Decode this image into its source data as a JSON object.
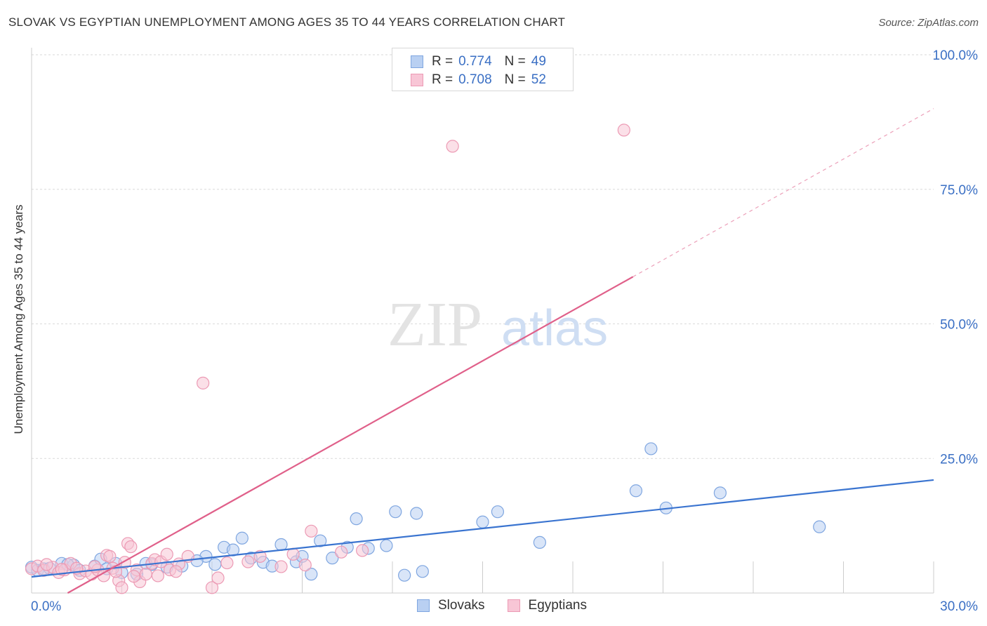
{
  "header": {
    "title": "SLOVAK VS EGYPTIAN UNEMPLOYMENT AMONG AGES 35 TO 44 YEARS CORRELATION CHART",
    "source": "Source: ZipAtlas.com"
  },
  "watermark": {
    "zip": "ZIP",
    "atlas": "atlas"
  },
  "legend": {
    "rows": [
      {
        "r_label": "R =",
        "r_value": "0.774",
        "n_label": "N =",
        "n_value": "49",
        "fill": "#b9d0f2",
        "stroke": "#7fa6e0"
      },
      {
        "r_label": "R =",
        "r_value": "0.708",
        "n_label": "N =",
        "n_value": "52",
        "fill": "#f8c6d6",
        "stroke": "#ec9ab4"
      }
    ]
  },
  "bottom_legend": {
    "series1": "Slovaks",
    "series2": "Egyptians"
  },
  "chart_data": {
    "type": "scatter",
    "xlabel": "",
    "ylabel": "Unemployment Among Ages 35 to 44 years",
    "xlim": [
      0,
      30
    ],
    "ylim": [
      0,
      100
    ],
    "x_tick_labels": [
      "0.0%",
      "30.0%"
    ],
    "y_tick_values": [
      25,
      50,
      75,
      100
    ],
    "y_tick_labels": [
      "25.0%",
      "50.0%",
      "75.0%",
      "100.0%"
    ],
    "grid": true,
    "legend_position": "top-center",
    "series": [
      {
        "name": "Slovaks",
        "color": "#3a74d0",
        "fill": "#b9d0f2",
        "stroke": "#7fa6e0",
        "trend": {
          "x0": 0,
          "y0": 3.0,
          "x1": 30,
          "y1": 21.0,
          "solid_until": 30
        },
        "points": [
          [
            0.0,
            4.8
          ],
          [
            0.2,
            4.2
          ],
          [
            0.4,
            4.5
          ],
          [
            0.6,
            4.6
          ],
          [
            1.0,
            5.5
          ],
          [
            1.4,
            5.2
          ],
          [
            1.6,
            4.2
          ],
          [
            2.1,
            5.0
          ],
          [
            2.3,
            6.3
          ],
          [
            2.5,
            4.5
          ],
          [
            3.0,
            3.8
          ],
          [
            3.5,
            3.5
          ],
          [
            4.0,
            5.3
          ],
          [
            4.5,
            4.8
          ],
          [
            5.0,
            5.0
          ],
          [
            5.8,
            6.8
          ],
          [
            6.1,
            5.3
          ],
          [
            6.4,
            8.5
          ],
          [
            6.7,
            8.0
          ],
          [
            7.0,
            10.2
          ],
          [
            7.3,
            6.5
          ],
          [
            7.7,
            5.7
          ],
          [
            8.0,
            5.0
          ],
          [
            8.3,
            9.0
          ],
          [
            8.8,
            5.8
          ],
          [
            9.0,
            6.8
          ],
          [
            9.3,
            3.5
          ],
          [
            9.6,
            9.7
          ],
          [
            10.0,
            6.5
          ],
          [
            10.5,
            8.5
          ],
          [
            10.8,
            13.8
          ],
          [
            11.2,
            8.3
          ],
          [
            11.8,
            8.8
          ],
          [
            12.1,
            15.1
          ],
          [
            12.4,
            3.3
          ],
          [
            12.8,
            14.8
          ],
          [
            13.0,
            4.0
          ],
          [
            15.0,
            13.2
          ],
          [
            15.5,
            15.1
          ],
          [
            16.9,
            9.4
          ],
          [
            20.1,
            19.0
          ],
          [
            20.6,
            26.8
          ],
          [
            21.1,
            15.8
          ],
          [
            22.9,
            18.6
          ],
          [
            26.2,
            12.3
          ],
          [
            1.2,
            5.3
          ],
          [
            3.8,
            5.5
          ],
          [
            2.8,
            5.5
          ],
          [
            5.5,
            6.0
          ]
        ]
      },
      {
        "name": "Egyptians",
        "color": "#e0608a",
        "fill": "#f8c6d6",
        "stroke": "#ec9ab4",
        "trend": {
          "x0": 1.2,
          "y0": 0.0,
          "x1": 30,
          "y1": 90.0,
          "solid_until": 20.0
        },
        "points": [
          [
            0.0,
            4.5
          ],
          [
            0.2,
            5.0
          ],
          [
            0.4,
            4.2
          ],
          [
            0.7,
            4.8
          ],
          [
            0.9,
            3.8
          ],
          [
            1.1,
            4.3
          ],
          [
            1.3,
            5.5
          ],
          [
            1.6,
            3.6
          ],
          [
            1.8,
            4.1
          ],
          [
            2.0,
            3.5
          ],
          [
            2.2,
            4.3
          ],
          [
            2.4,
            3.2
          ],
          [
            2.5,
            7.0
          ],
          [
            2.6,
            6.8
          ],
          [
            2.7,
            4.6
          ],
          [
            2.9,
            2.3
          ],
          [
            3.0,
            1.0
          ],
          [
            3.1,
            5.7
          ],
          [
            3.2,
            9.2
          ],
          [
            3.3,
            8.6
          ],
          [
            3.5,
            4.3
          ],
          [
            3.6,
            2.1
          ],
          [
            3.8,
            3.5
          ],
          [
            4.0,
            5.5
          ],
          [
            4.1,
            6.2
          ],
          [
            4.2,
            3.2
          ],
          [
            4.3,
            5.8
          ],
          [
            4.5,
            7.2
          ],
          [
            4.6,
            4.3
          ],
          [
            4.9,
            5.4
          ],
          [
            5.2,
            6.8
          ],
          [
            5.7,
            39.0
          ],
          [
            6.0,
            1.0
          ],
          [
            6.2,
            2.8
          ],
          [
            6.5,
            5.6
          ],
          [
            7.2,
            5.8
          ],
          [
            7.6,
            6.8
          ],
          [
            8.3,
            4.9
          ],
          [
            8.7,
            7.2
          ],
          [
            9.1,
            5.2
          ],
          [
            9.3,
            11.5
          ],
          [
            10.3,
            7.6
          ],
          [
            11.0,
            7.9
          ],
          [
            14.0,
            83.0
          ],
          [
            19.7,
            86.0
          ],
          [
            1.5,
            4.6
          ],
          [
            2.1,
            4.9
          ],
          [
            0.5,
            5.3
          ],
          [
            3.4,
            3.1
          ],
          [
            4.8,
            4.0
          ],
          [
            1.0,
            4.4
          ],
          [
            2.8,
            4.0
          ]
        ]
      }
    ]
  }
}
